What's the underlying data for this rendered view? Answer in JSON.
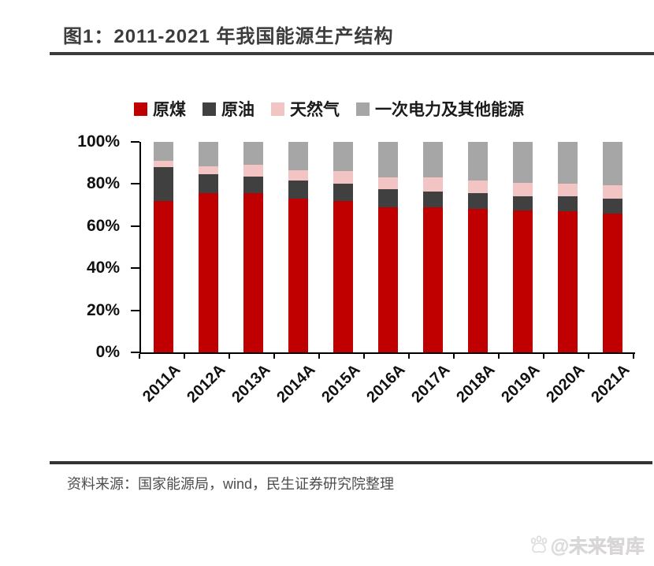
{
  "title": "图1：2011-2021 年我国能源生产结构",
  "chart_data": {
    "type": "bar",
    "stacked": true,
    "title": "2011-2021 年我国能源生产结构",
    "categories": [
      "2011A",
      "2012A",
      "2013A",
      "2014A",
      "2015A",
      "2016A",
      "2017A",
      "2018A",
      "2019A",
      "2020A",
      "2021A"
    ],
    "series": [
      {
        "id": "coal",
        "name": "原煤",
        "color": "#c00000",
        "values": [
          72,
          75.5,
          75.5,
          73,
          72,
          69,
          69,
          68,
          67.5,
          67,
          66
        ]
      },
      {
        "id": "oil",
        "name": "原油",
        "color": "#404040",
        "values": [
          16,
          9,
          8,
          8.5,
          8,
          8.5,
          7.5,
          7.5,
          6.5,
          7,
          7
        ]
      },
      {
        "id": "gas",
        "name": "天然气",
        "color": "#f2c5c4",
        "values": [
          3,
          4,
          5.5,
          5,
          6,
          5.5,
          6.5,
          6,
          6.5,
          6,
          6.5
        ]
      },
      {
        "id": "electricity",
        "name": "一次电力及其他能源",
        "color": "#a6a6a6",
        "values": [
          9,
          11.5,
          11,
          13.5,
          14,
          17,
          17,
          18.5,
          19.5,
          20,
          20.5
        ]
      }
    ],
    "ylim": [
      0,
      100
    ],
    "y_ticks": [
      "0%",
      "20%",
      "40%",
      "60%",
      "80%",
      "100%"
    ],
    "unit": "%",
    "grid": false,
    "legend_position": "top",
    "xlabel": "",
    "ylabel": ""
  },
  "footer": {
    "source": "资料来源：国家能源局，wind，民生证券研究院整理"
  },
  "watermark": {
    "icon": "paw-icon",
    "text": "@未来智库"
  },
  "colors": {
    "accent_red": "#c00000",
    "dark_gray": "#404040",
    "pink": "#f2c5c4",
    "light_gray": "#a6a6a6",
    "rule": "#3c3c3c"
  }
}
